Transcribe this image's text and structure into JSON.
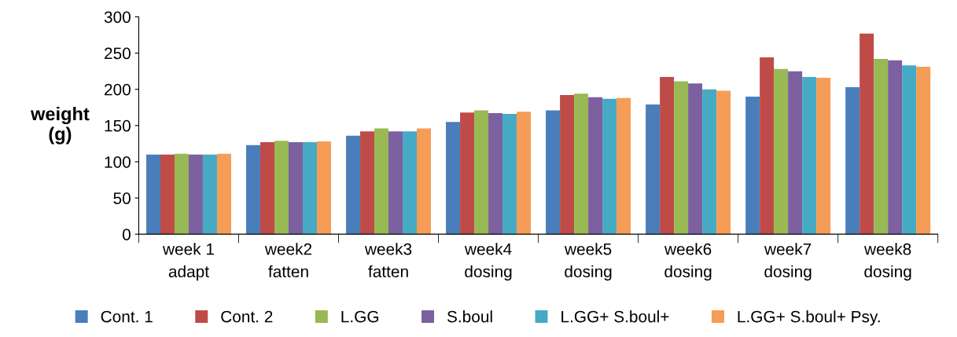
{
  "chart_data": {
    "type": "bar",
    "ylabel": "weight\n(g)",
    "categories": [
      "week 1\nadapt",
      "week2\nfatten",
      "week3\nfatten",
      "week4\ndosing",
      "week5\ndosing",
      "week6\ndosing",
      "week7\ndosing",
      "week8\ndosing"
    ],
    "series": [
      {
        "name": "Cont. 1",
        "color": "#4a7ebb",
        "values": [
          110,
          123,
          136,
          155,
          171,
          179,
          190,
          203
        ]
      },
      {
        "name": "Cont. 2",
        "color": "#be4b48",
        "values": [
          110,
          127,
          142,
          168,
          192,
          217,
          244,
          277
        ]
      },
      {
        "name": "L.GG",
        "color": "#98b954",
        "values": [
          111,
          129,
          146,
          171,
          194,
          211,
          228,
          242
        ]
      },
      {
        "name": "S.boul",
        "color": "#7d60a0",
        "values": [
          110,
          127,
          142,
          167,
          189,
          208,
          225,
          240
        ]
      },
      {
        "name": "L.GG+ S.boul+",
        "color": "#46aac5",
        "values": [
          110,
          127,
          142,
          166,
          187,
          200,
          217,
          233
        ]
      },
      {
        "name": "L.GG+ S.boul+ Psy.",
        "color": "#f59d56",
        "values": [
          111,
          128,
          146,
          169,
          188,
          198,
          216,
          231
        ]
      }
    ],
    "ylim": [
      0,
      300
    ],
    "yticks": [
      0,
      50,
      100,
      150,
      200,
      250,
      300
    ],
    "grid": false,
    "legend": "bottom"
  }
}
